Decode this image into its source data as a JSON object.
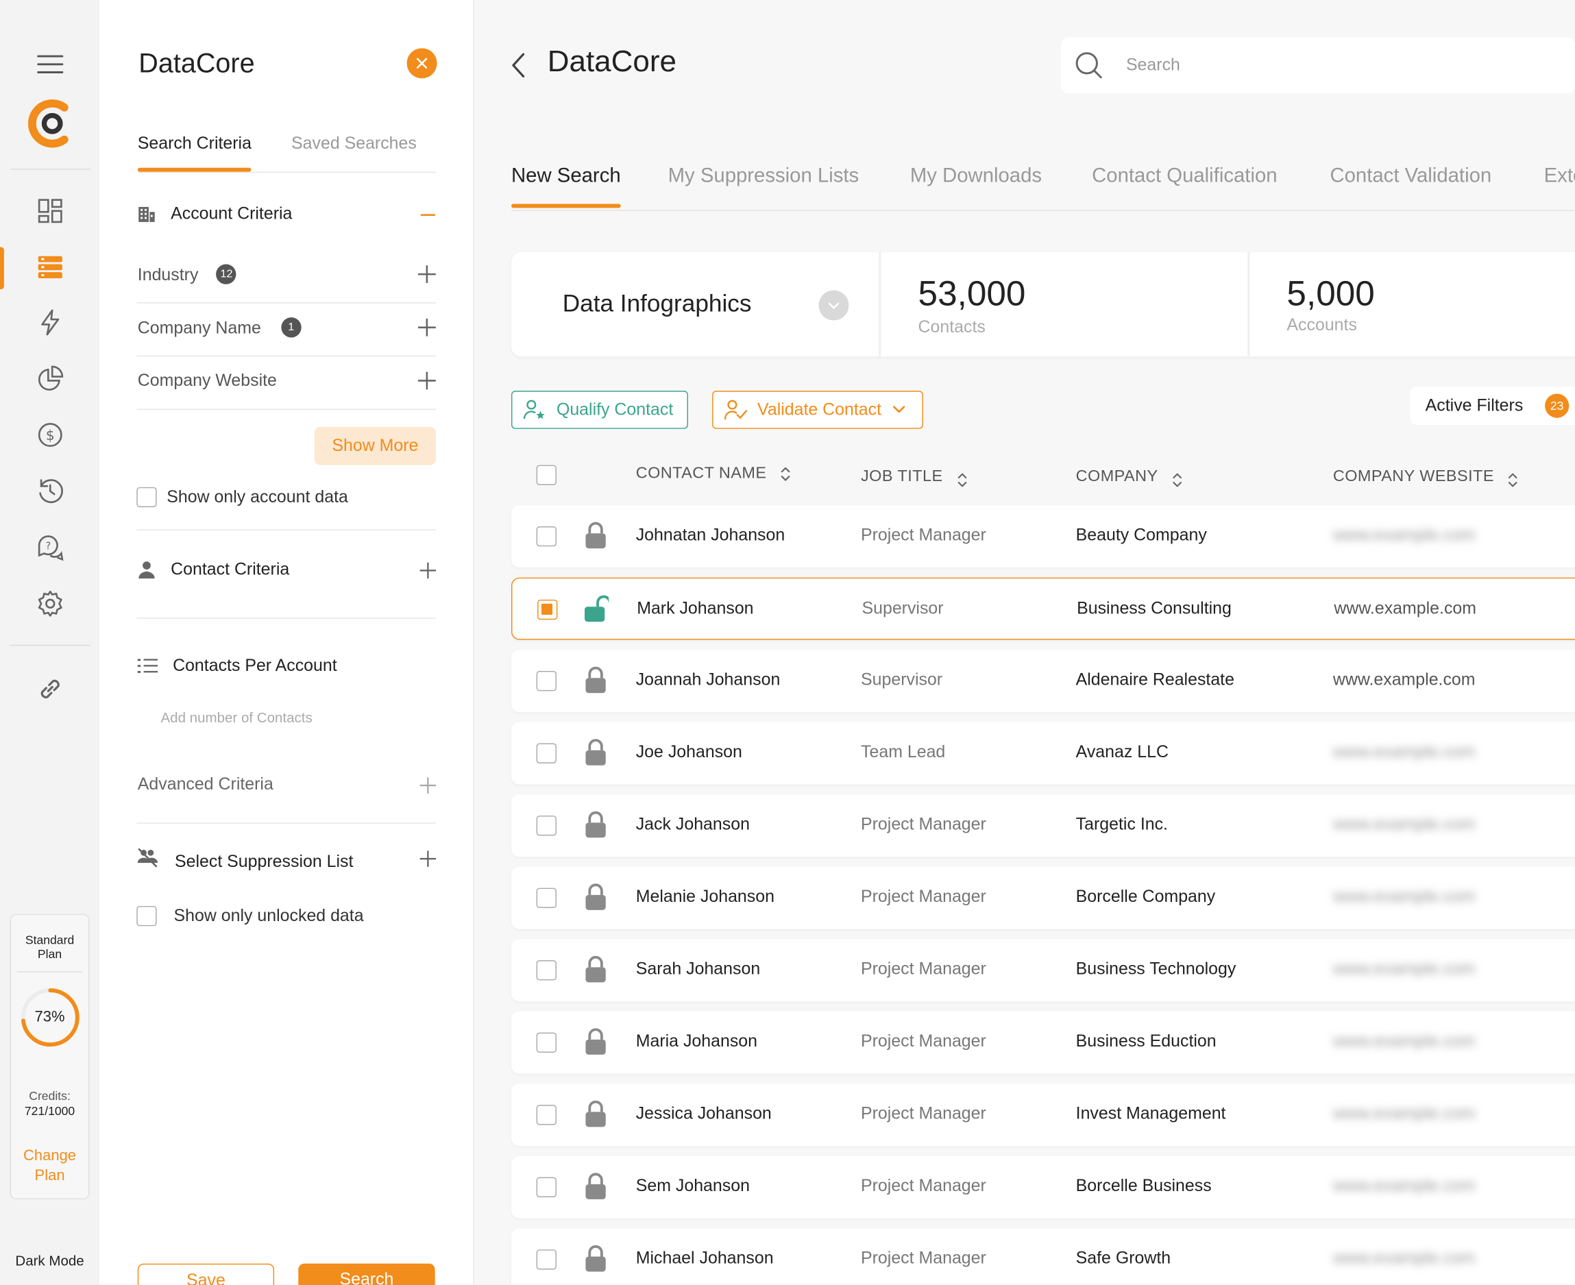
{
  "rail": {
    "items": [
      "dashboard-icon",
      "data-list-icon",
      "lightning-icon",
      "pie-chart-icon",
      "dollar-icon",
      "history-icon",
      "help-chat-icon",
      "settings-icon",
      "link-icon"
    ],
    "plan_title": "Standard Plan",
    "plan_percent": "73%",
    "plan_fraction": 0.73,
    "credits_label": "Credits:",
    "credits_value": "721/1000",
    "change_plan": "Change Plan",
    "dark_mode": "Dark Mode"
  },
  "panel": {
    "title": "DataCore",
    "tabs": [
      "Search Criteria",
      "Saved Searches"
    ],
    "account_criteria": "Account Criteria",
    "filters": [
      {
        "label": "Industry",
        "badge": "12"
      },
      {
        "label": "Company Name",
        "badge": "1"
      },
      {
        "label": "Company Website",
        "badge": ""
      }
    ],
    "show_more": "Show More",
    "show_only_account": "Show only account data",
    "contact_criteria": "Contact Criteria",
    "contacts_per_account": "Contacts Per Account",
    "contacts_placeholder": "Add number of Contacts",
    "advanced_criteria": "Advanced Criteria",
    "suppression_list": "Select Suppression List",
    "show_only_unlocked": "Show only unlocked data",
    "save": "Save",
    "search": "Search"
  },
  "main": {
    "title": "DataCore",
    "search_placeholder": "Search",
    "tabs": [
      "New Search",
      "My Suppression Lists",
      "My Downloads",
      "Contact Qualification",
      "Contact Validation",
      "Exte"
    ],
    "infographics": "Data Infographics",
    "stats": [
      {
        "value": "53,000",
        "label": "Contacts"
      },
      {
        "value": "5,000",
        "label": "Accounts"
      }
    ],
    "qualify": "Qualify Contact",
    "validate": "Validate Contact",
    "active_filters": "Active Filters",
    "active_filters_count": "23",
    "columns": [
      "CONTACT NAME",
      "JOB TITLE",
      "COMPANY",
      "COMPANY WEBSITE"
    ],
    "rows": [
      {
        "name": "Johnatan Johanson",
        "title": "Project Manager",
        "company": "Beauty Company",
        "website": "www.example.com",
        "unlocked": false,
        "selected": false
      },
      {
        "name": "Mark Johanson",
        "title": "Supervisor",
        "company": "Business Consulting",
        "website": "www.example.com",
        "unlocked": true,
        "selected": true
      },
      {
        "name": "Joannah Johanson",
        "title": "Supervisor",
        "company": "Aldenaire Realestate",
        "website": "www.example.com",
        "unlocked": false,
        "selected": false,
        "website_visible": true
      },
      {
        "name": "Joe Johanson",
        "title": "Team Lead",
        "company": "Avanaz LLC",
        "website": "www.example.com",
        "unlocked": false,
        "selected": false
      },
      {
        "name": "Jack Johanson",
        "title": "Project Manager",
        "company": "Targetic Inc.",
        "website": "www.example.com",
        "unlocked": false,
        "selected": false
      },
      {
        "name": "Melanie Johanson",
        "title": "Project Manager",
        "company": "Borcelle Company",
        "website": "www.example.com",
        "unlocked": false,
        "selected": false
      },
      {
        "name": "Sarah Johanson",
        "title": "Project Manager",
        "company": "Business Technology",
        "website": "www.example.com",
        "unlocked": false,
        "selected": false
      },
      {
        "name": "Maria Johanson",
        "title": "Project Manager",
        "company": "Business Eduction",
        "website": "www.example.com",
        "unlocked": false,
        "selected": false
      },
      {
        "name": "Jessica Johanson",
        "title": "Project Manager",
        "company": "Invest Management",
        "website": "www.example.com",
        "unlocked": false,
        "selected": false
      },
      {
        "name": "Sem Johanson",
        "title": "Project Manager",
        "company": "Borcelle Business",
        "website": "www.example.com",
        "unlocked": false,
        "selected": false
      },
      {
        "name": "Michael Johanson",
        "title": "Project Manager",
        "company": "Safe Growth",
        "website": "www.example.com",
        "unlocked": false,
        "selected": false
      }
    ]
  },
  "colors": {
    "accent": "#f28c1a",
    "teal": "#3aa58c"
  }
}
